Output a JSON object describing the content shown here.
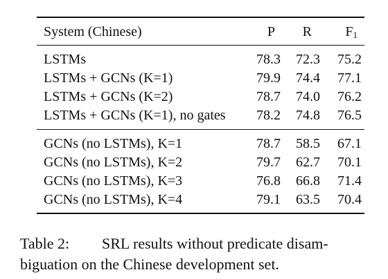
{
  "table": {
    "header": {
      "system": "System (Chinese)",
      "p": "P",
      "r": "R",
      "f_base": "F",
      "f_sub": "1"
    },
    "group1": [
      {
        "system": "LSTMs",
        "p": "78.3",
        "r": "72.3",
        "f": "75.2"
      },
      {
        "system": "LSTMs + GCNs (K=1)",
        "p": "79.9",
        "r": "74.4",
        "f": "77.1"
      },
      {
        "system": "LSTMs + GCNs (K=2)",
        "p": "78.7",
        "r": "74.0",
        "f": "76.2"
      },
      {
        "system": "LSTMs + GCNs (K=1), no gates",
        "p": "78.2",
        "r": "74.8",
        "f": "76.5"
      }
    ],
    "group2": [
      {
        "system": "GCNs (no LSTMs), K=1",
        "p": "78.7",
        "r": "58.5",
        "f": "67.1"
      },
      {
        "system": "GCNs (no LSTMs), K=2",
        "p": "79.7",
        "r": "62.7",
        "f": "70.1"
      },
      {
        "system": "GCNs (no LSTMs), K=3",
        "p": "76.8",
        "r": "66.8",
        "f": "71.4"
      },
      {
        "system": "GCNs (no LSTMs), K=4",
        "p": "79.1",
        "r": "63.5",
        "f": "70.4"
      }
    ]
  },
  "caption": {
    "label": "Table 2:",
    "line1_rest": "SRL results without predicate disam-",
    "line2": "biguation on the Chinese development set."
  }
}
